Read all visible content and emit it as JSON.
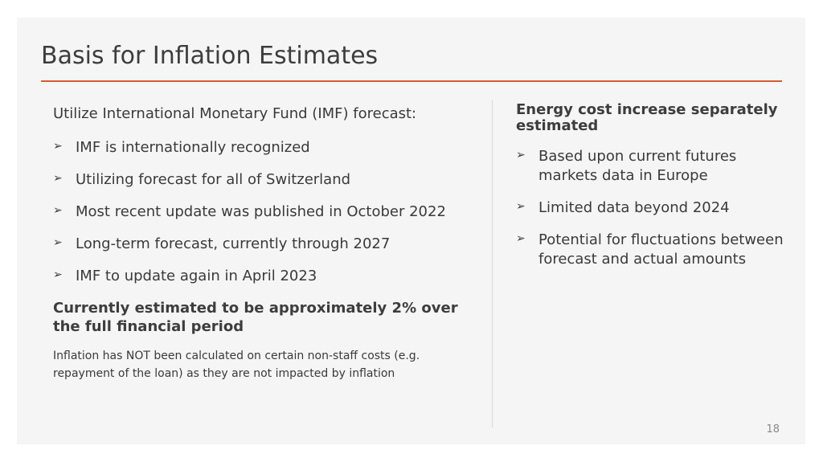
{
  "slide": {
    "title": "Basis for Inflation Estimates",
    "page_number": "18",
    "accent_color": "#d75b32"
  },
  "left": {
    "intro": "Utilize International Monetary Fund (IMF) forecast:",
    "bullets": [
      "IMF is internationally recognized",
      "Utilizing forecast for all of Switzerland",
      "Most recent update was published in October 2022",
      "Long-term forecast, currently through 2027",
      "IMF to update again in April 2023"
    ],
    "conclusion": "Currently estimated to be approximately 2% over the full financial period",
    "note": "Inflation has NOT been calculated on certain non-staff costs (e.g. repayment of the loan) as they are not impacted by inflation"
  },
  "right": {
    "heading": "Energy cost increase separately estimated",
    "bullets": [
      "Based upon current futures markets data in Europe",
      "Limited data beyond 2024",
      "Potential for fluctuations between forecast and actual amounts"
    ]
  },
  "icons": {
    "bullet": "arrowhead-bullet-icon"
  }
}
